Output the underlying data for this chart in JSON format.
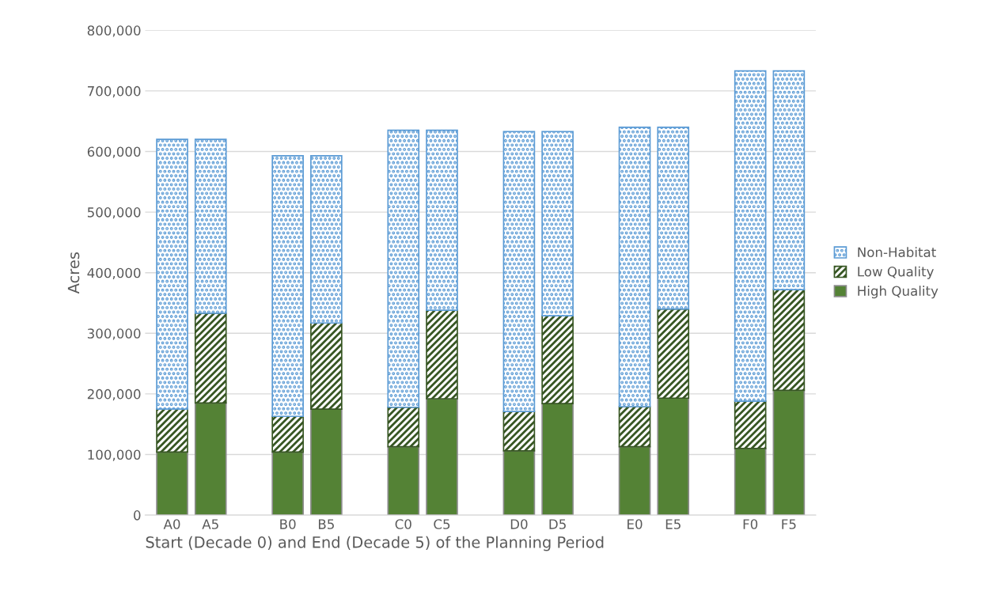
{
  "chart_data": {
    "type": "bar",
    "stacked": true,
    "categories": [
      "A0",
      "A5",
      null,
      "B0",
      "B5",
      null,
      "C0",
      "C5",
      null,
      "D0",
      "D5",
      null,
      "E0",
      "E5",
      null,
      "F0",
      "F5"
    ],
    "series": [
      {
        "name": "High Quality",
        "color": "#548235",
        "values": [
          104000,
          185000,
          null,
          104000,
          175000,
          null,
          113000,
          192000,
          null,
          106000,
          184000,
          null,
          113000,
          193000,
          null,
          110000,
          206000
        ]
      },
      {
        "name": "Low Quality",
        "color": "#375623",
        "values": [
          71000,
          148000,
          null,
          59000,
          142000,
          null,
          65000,
          146000,
          null,
          65000,
          145000,
          null,
          66000,
          147000,
          null,
          78000,
          166000
        ]
      },
      {
        "name": "Non-Habitat",
        "color": "#5b9bd5",
        "values": [
          445000,
          287000,
          null,
          430000,
          276000,
          null,
          457000,
          297000,
          null,
          462000,
          304000,
          null,
          461000,
          300000,
          null,
          545000,
          361000
        ]
      }
    ],
    "ylabel": "Acres",
    "xlabel": "Start (Decade 0) and End (Decade 5) of the Planning Period",
    "ylim": [
      0,
      800000
    ],
    "yticks": [
      0,
      {
        "value": 100000,
        "label": "100,000"
      },
      {
        "value": 200000,
        "label": "200,000"
      },
      {
        "value": 300000,
        "label": "300,000"
      },
      {
        "value": 400000,
        "label": "400,000"
      },
      {
        "value": 500000,
        "label": "500,000"
      },
      {
        "value": 600000,
        "label": "600,000"
      },
      {
        "value": 700000,
        "label": "700,000"
      },
      {
        "value": 800000,
        "label": "800,000"
      }
    ],
    "grid": "y",
    "legend": "right"
  }
}
